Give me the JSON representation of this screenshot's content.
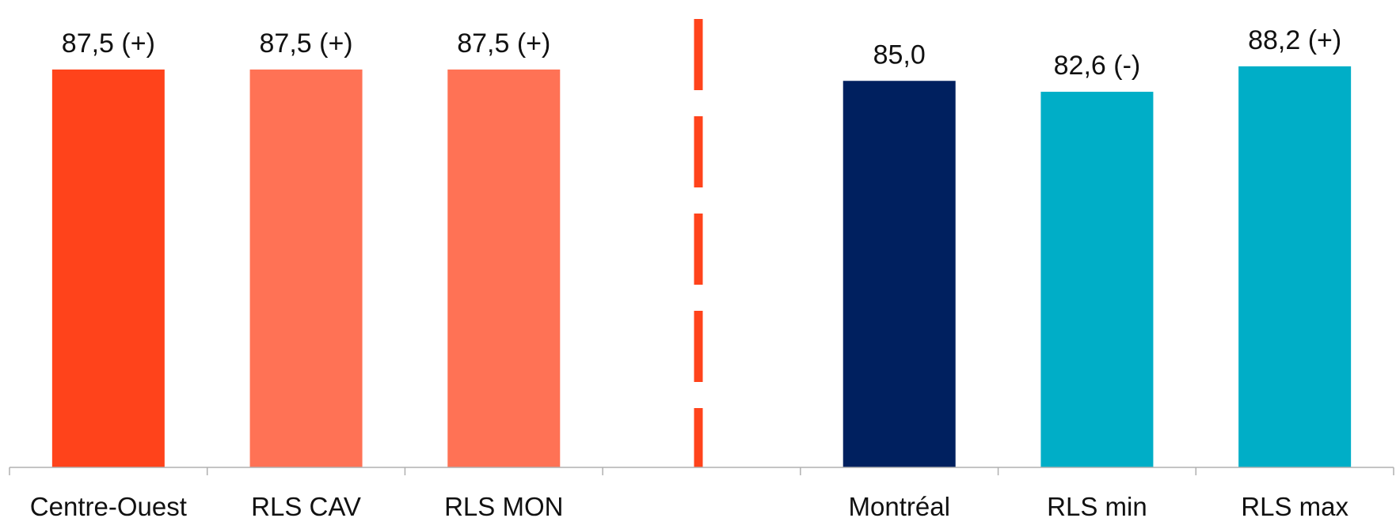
{
  "chart_data": {
    "type": "bar",
    "title": "",
    "xlabel": "",
    "ylabel": "",
    "ylim": [
      0,
      100
    ],
    "grid": false,
    "legend": "none",
    "categories": [
      "Centre-Ouest",
      "RLS CAV",
      "RLS MON",
      "",
      "Montréal",
      "RLS min",
      "RLS max"
    ],
    "values": [
      87.5,
      87.5,
      87.5,
      null,
      85.0,
      82.6,
      88.2
    ],
    "data_labels": [
      "87,5 (+)",
      "87,5 (+)",
      "87,5 (+)",
      "",
      "85,0",
      "82,6 (-)",
      "88,2 (+)"
    ],
    "colors": [
      "#FF431B",
      "#FF7255",
      "#FF7255",
      "",
      "#00205F",
      "#00AEC7",
      "#00AEC7"
    ],
    "separator": {
      "after_category_index": 3,
      "style": "dashed",
      "color": "#FF431B"
    }
  }
}
